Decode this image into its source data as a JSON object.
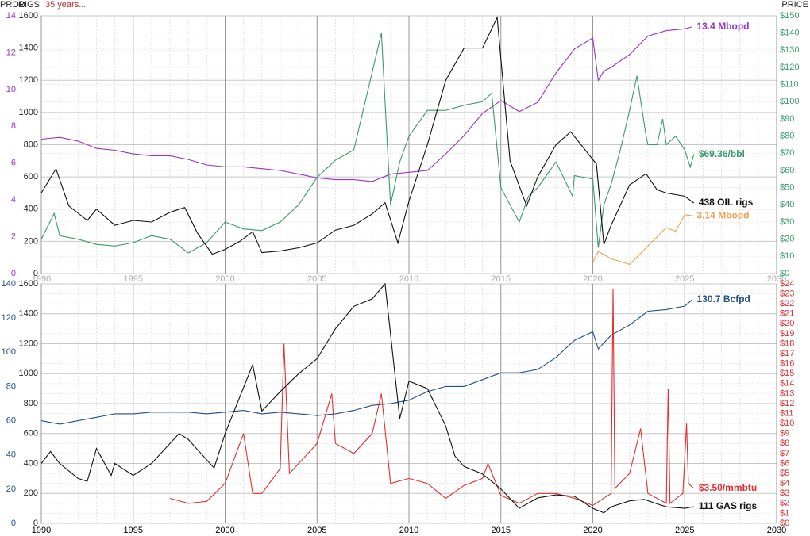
{
  "chart_data": [
    {
      "type": "line",
      "y3_label": "PROD",
      "y_label": "RIGS",
      "subtitle": "35 years...",
      "y2_label": "PRICE",
      "xlim": [
        1990,
        2030
      ],
      "xticks": [
        1990,
        1995,
        2000,
        2005,
        2010,
        2015,
        2020,
        2025,
        2030
      ],
      "ylim": [
        0,
        1600
      ],
      "yticks": [
        0,
        200,
        400,
        600,
        800,
        1000,
        1200,
        1400,
        1600
      ],
      "y2lim": [
        0,
        150
      ],
      "y2_color": "#3a9a6a",
      "y2ticks": [
        {
          "value": 0,
          "label": "$0"
        },
        {
          "value": 10,
          "label": "$10"
        },
        {
          "value": 20,
          "label": "$20"
        },
        {
          "value": 30,
          "label": "$30"
        },
        {
          "value": 40,
          "label": "$40"
        },
        {
          "value": 50,
          "label": "$50"
        },
        {
          "value": 60,
          "label": "$60"
        },
        {
          "value": 70,
          "label": "$70"
        },
        {
          "value": 80,
          "label": "$80"
        },
        {
          "value": 90,
          "label": "$90"
        },
        {
          "value": 100,
          "label": "$100"
        },
        {
          "value": 110,
          "label": "$110"
        },
        {
          "value": 120,
          "label": "$120"
        },
        {
          "value": 130,
          "label": "$130"
        },
        {
          "value": 140,
          "label": "$140"
        },
        {
          "value": 150,
          "label": "$150"
        }
      ],
      "y3lim": [
        0,
        14
      ],
      "y3_color": "#9b30c8",
      "y3ticks": [
        0,
        2,
        4,
        6,
        8,
        10,
        12,
        14
      ],
      "grid": true,
      "series": [
        {
          "name": "13.4 Mbopd",
          "color": "#9b30c8",
          "axis": "y3",
          "x": [
            1990,
            1991,
            1992,
            1993,
            1994,
            1995,
            1996,
            1997,
            1998,
            1999,
            2000,
            2001,
            2002,
            2003,
            2004,
            2005,
            2006,
            2007,
            2008,
            2009,
            2010,
            2011,
            2012,
            2013,
            2014,
            2015,
            2016,
            2017,
            2018,
            2019,
            2020,
            2020.3,
            2020.6,
            2021,
            2022,
            2023,
            2024,
            2025,
            2025.4
          ],
          "values": [
            7.3,
            7.4,
            7.2,
            6.8,
            6.7,
            6.5,
            6.4,
            6.4,
            6.2,
            5.9,
            5.8,
            5.8,
            5.7,
            5.6,
            5.4,
            5.2,
            5.1,
            5.1,
            5.0,
            5.4,
            5.5,
            5.6,
            6.5,
            7.5,
            8.7,
            9.4,
            8.8,
            9.3,
            10.9,
            12.2,
            12.8,
            10.5,
            11.0,
            11.2,
            11.9,
            12.9,
            13.2,
            13.3,
            13.4
          ]
        },
        {
          "name": "$69.36/bbl",
          "color": "#3a9a6a",
          "axis": "y2",
          "x": [
            1990,
            1990.7,
            1991,
            1992,
            1993,
            1994,
            1995,
            1996,
            1997,
            1998,
            1999,
            2000,
            2001,
            2002,
            2003,
            2004,
            2005,
            2006,
            2007,
            2008.5,
            2009,
            2009.5,
            2010,
            2011,
            2012,
            2013,
            2014,
            2014.5,
            2015,
            2016,
            2016.5,
            2017,
            2018,
            2018.9,
            2019,
            2020,
            2020.3,
            2020.6,
            2021,
            2021.5,
            2022,
            2022.4,
            2022.9,
            2023,
            2023.5,
            2023.8,
            2024,
            2024.5,
            2025,
            2025.3,
            2025.5
          ],
          "values": [
            20,
            35,
            22,
            20,
            17,
            16,
            18,
            22,
            20,
            12,
            18,
            30,
            26,
            25,
            30,
            40,
            56,
            66,
            72,
            140,
            40,
            65,
            80,
            95,
            95,
            98,
            100,
            105,
            50,
            30,
            45,
            50,
            65,
            45,
            57,
            55,
            15,
            40,
            52,
            72,
            95,
            115,
            80,
            75,
            75,
            90,
            75,
            80,
            72,
            62,
            69.36
          ]
        },
        {
          "name": "438 OIL rigs",
          "color": "#111111",
          "axis": "y",
          "x": [
            1990,
            1990.8,
            1991.5,
            1992.5,
            1993,
            1994,
            1995,
            1996,
            1997,
            1997.8,
            1998.5,
            1999.3,
            2000,
            2000.8,
            2001.5,
            2002,
            2003,
            2004,
            2005,
            2006,
            2007,
            2008,
            2008.7,
            2009.4,
            2010,
            2011,
            2012,
            2013,
            2014,
            2014.8,
            2015.5,
            2016.4,
            2017,
            2018,
            2018.8,
            2019.5,
            2020.2,
            2020.6,
            2021,
            2022,
            2022.9,
            2023.5,
            2024,
            2025,
            2025.5
          ],
          "values": [
            500,
            650,
            420,
            330,
            400,
            300,
            330,
            320,
            380,
            410,
            250,
            120,
            150,
            200,
            260,
            130,
            140,
            160,
            190,
            270,
            300,
            370,
            440,
            190,
            450,
            800,
            1200,
            1400,
            1400,
            1590,
            700,
            420,
            600,
            800,
            880,
            780,
            680,
            180,
            300,
            550,
            620,
            520,
            500,
            480,
            438
          ]
        },
        {
          "name": "3.14 Mbopd",
          "color": "#f0a050",
          "axis": "y3",
          "x": [
            2020,
            2020.3,
            2021,
            2022,
            2022.5,
            2023,
            2023.5,
            2024,
            2024.5,
            2025,
            2025.4
          ],
          "values": [
            0.6,
            1.2,
            0.8,
            0.5,
            1.0,
            1.5,
            2.0,
            2.5,
            2.3,
            3.2,
            3.14
          ]
        }
      ]
    },
    {
      "type": "line",
      "xlim": [
        1990,
        2030
      ],
      "xticks": [
        1990,
        1995,
        2000,
        2005,
        2010,
        2015,
        2020,
        2025,
        2030
      ],
      "ylim": [
        0,
        1600
      ],
      "yticks": [
        0,
        200,
        400,
        600,
        800,
        1000,
        1200,
        1400,
        1600
      ],
      "y2lim": [
        0,
        24
      ],
      "y2_color": "#e03030",
      "y2ticks": [
        {
          "value": 0,
          "label": "$0"
        },
        {
          "value": 1,
          "label": "$1"
        },
        {
          "value": 2,
          "label": "$2"
        },
        {
          "value": 3,
          "label": "$3"
        },
        {
          "value": 4,
          "label": "$4"
        },
        {
          "value": 5,
          "label": "$5"
        },
        {
          "value": 6,
          "label": "$6"
        },
        {
          "value": 7,
          "label": "$7"
        },
        {
          "value": 8,
          "label": "$8"
        },
        {
          "value": 9,
          "label": "$9"
        },
        {
          "value": 10,
          "label": "$10"
        },
        {
          "value": 11,
          "label": "$11"
        },
        {
          "value": 12,
          "label": "$12"
        },
        {
          "value": 13,
          "label": "$13"
        },
        {
          "value": 14,
          "label": "$14"
        },
        {
          "value": 15,
          "label": "$15"
        },
        {
          "value": 16,
          "label": "$16"
        },
        {
          "value": 17,
          "label": "$17"
        },
        {
          "value": 18,
          "label": "$18"
        },
        {
          "value": 19,
          "label": "$19"
        },
        {
          "value": 20,
          "label": "$20"
        },
        {
          "value": 21,
          "label": "$21"
        },
        {
          "value": 22,
          "label": "$22"
        },
        {
          "value": 23,
          "label": "$23"
        },
        {
          "value": 24,
          "label": "$24"
        }
      ],
      "y3lim": [
        0,
        140
      ],
      "y3_color": "#1f4e8c",
      "y3ticks": [
        0,
        20,
        40,
        60,
        80,
        100,
        120,
        140
      ],
      "grid": true,
      "series": [
        {
          "name": "130.7 Bcfpd",
          "color": "#1f4e8c",
          "axis": "y3",
          "x": [
            1990,
            1991,
            1992,
            1993,
            1994,
            1995,
            1996,
            1997,
            1998,
            1999,
            2000,
            2001,
            2002,
            2003,
            2004,
            2005,
            2006,
            2007,
            2008,
            2009,
            2010,
            2011,
            2012,
            2013,
            2014,
            2015,
            2016,
            2017,
            2018,
            2019,
            2020,
            2020.3,
            2021,
            2022,
            2023,
            2024,
            2025,
            2025.4
          ],
          "values": [
            60,
            58,
            60,
            62,
            64,
            64,
            65,
            65,
            65,
            64,
            65,
            66,
            64,
            65,
            64,
            63,
            64,
            66,
            69,
            70,
            72,
            77,
            80,
            80,
            84,
            88,
            88,
            90,
            97,
            107,
            112,
            102,
            110,
            116,
            124,
            125,
            127,
            130.7
          ]
        },
        {
          "name": "$3.50/mmbtu",
          "color": "#e03030",
          "axis": "y2",
          "x": [
            1997,
            1998,
            1999,
            2000,
            2001,
            2001.5,
            2002,
            2003,
            2003.2,
            2003.5,
            2004,
            2005,
            2005.8,
            2006,
            2007,
            2008,
            2008.5,
            2009,
            2010,
            2011,
            2012,
            2013,
            2014,
            2014.3,
            2015,
            2016,
            2017,
            2018,
            2019,
            2020,
            2021,
            2021.1,
            2021.2,
            2022,
            2022.6,
            2023,
            2023.5,
            2024,
            2024.1,
            2024.2,
            2024.9,
            2025.1,
            2025.2,
            2025.5
          ],
          "values": [
            2.5,
            2,
            2.2,
            4,
            9,
            3,
            3,
            5.5,
            18,
            5,
            6,
            8,
            13,
            8,
            7,
            9,
            13,
            4,
            4.5,
            4,
            2.5,
            3.8,
            4.5,
            6,
            2.8,
            2,
            3,
            3,
            2.5,
            1.8,
            3,
            23.5,
            3.5,
            5,
            9.5,
            3,
            2.5,
            2,
            13.5,
            2,
            3,
            10,
            4,
            3.5
          ]
        },
        {
          "name": "111 GAS rigs",
          "color": "#111111",
          "axis": "y",
          "x": [
            1990,
            1990.5,
            1991,
            1992,
            1992.5,
            1993,
            1993.8,
            1994,
            1995,
            1996,
            1997.5,
            1998,
            1999.4,
            2000,
            2001.5,
            2002,
            2003,
            2004,
            2005,
            2006,
            2007,
            2008,
            2008.7,
            2009.5,
            2010,
            2011,
            2012,
            2012.5,
            2013,
            2014,
            2015,
            2016,
            2017,
            2018,
            2019,
            2020,
            2020.6,
            2021,
            2022,
            2022.8,
            2023.5,
            2024,
            2025,
            2025.5
          ],
          "values": [
            400,
            480,
            400,
            300,
            280,
            500,
            320,
            400,
            320,
            400,
            600,
            560,
            370,
            600,
            1060,
            750,
            880,
            1000,
            1100,
            1300,
            1450,
            1500,
            1600,
            700,
            950,
            900,
            650,
            450,
            380,
            330,
            230,
            100,
            170,
            190,
            180,
            100,
            70,
            110,
            150,
            160,
            130,
            110,
            100,
            111
          ]
        }
      ]
    }
  ]
}
